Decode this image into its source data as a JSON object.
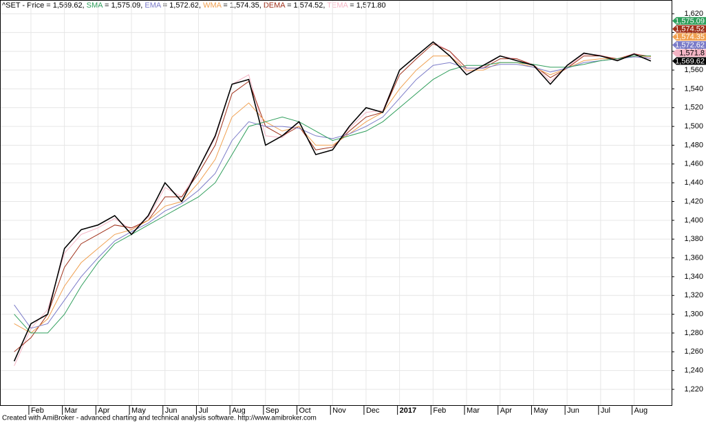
{
  "chart_data": {
    "type": "line",
    "title": "^SET - ",
    "footer": "Created with AmiBroker - advanced charting and technical analysis software. http://www.amibroker.com",
    "categories": [
      null,
      "Feb",
      null,
      "Mar",
      null,
      "Apr",
      null,
      "May",
      null,
      "Jun",
      null,
      "Jul",
      null,
      "Aug",
      null,
      "Sep",
      null,
      "Oct",
      null,
      "Nov",
      null,
      "Dec",
      null,
      "2017",
      null,
      "Feb",
      null,
      "Mar",
      null,
      "Apr",
      null,
      "May",
      null,
      "Jun",
      null,
      "Jul",
      null,
      "Aug",
      null
    ],
    "ylim": [
      1220,
      1620
    ],
    "yticks": [
      {
        "value": 1220,
        "label": "1,220"
      },
      {
        "value": 1240,
        "label": "1,240"
      },
      {
        "value": 1260,
        "label": "1,260"
      },
      {
        "value": 1280,
        "label": "1,280"
      },
      {
        "value": 1300,
        "label": "1,300"
      },
      {
        "value": 1320,
        "label": "1,320"
      },
      {
        "value": 1340,
        "label": "1,340"
      },
      {
        "value": 1360,
        "label": "1,360"
      },
      {
        "value": 1380,
        "label": "1,380"
      },
      {
        "value": 1400,
        "label": "1,400"
      },
      {
        "value": 1420,
        "label": "1,420"
      },
      {
        "value": 1440,
        "label": "1,440"
      },
      {
        "value": 1460,
        "label": "1,460"
      },
      {
        "value": 1480,
        "label": "1,480"
      },
      {
        "value": 1500,
        "label": "1,500"
      },
      {
        "value": 1520,
        "label": "1,520"
      },
      {
        "value": 1540,
        "label": "1,540"
      },
      {
        "value": 1560,
        "label": "1,560"
      },
      {
        "value": 1580,
        "label": "1,580"
      },
      {
        "value": 1600,
        "label": "1,600"
      },
      {
        "value": 1620,
        "label": "1,620"
      }
    ],
    "grid": true,
    "series": [
      {
        "name": "Price",
        "color": "#000000",
        "header_text": " = 1,569.62, ",
        "values": [
          1250,
          1290,
          1300,
          1370,
          1390,
          1395,
          1405,
          1385,
          1405,
          1440,
          1420,
          1455,
          1490,
          1545,
          1550,
          1480,
          1490,
          1505,
          1470,
          1475,
          1500,
          1520,
          1515,
          1560,
          1575,
          1590,
          1575,
          1555,
          1565,
          1575,
          1570,
          1565,
          1545,
          1565,
          1578,
          1575,
          1570,
          1577,
          1569.62
        ],
        "value_labels": [
          null,
          null,
          null,
          null,
          null,
          null,
          null,
          null,
          null,
          null,
          null,
          null,
          null,
          null,
          null,
          null,
          null,
          null,
          null,
          null,
          null,
          null,
          null,
          null,
          null,
          null,
          null,
          null,
          null,
          null,
          null,
          null,
          null,
          null,
          null,
          null,
          null,
          null,
          "1,569.62"
        ]
      },
      {
        "name": "SMA",
        "color": "#2e9e5b",
        "header_text": " = 1,575.09, ",
        "values": [
          1300,
          1280,
          1280,
          1300,
          1330,
          1355,
          1375,
          1385,
          1395,
          1405,
          1415,
          1425,
          1440,
          1470,
          1500,
          1505,
          1510,
          1505,
          1495,
          1485,
          1490,
          1495,
          1505,
          1520,
          1535,
          1550,
          1560,
          1565,
          1565,
          1568,
          1568,
          1566,
          1563,
          1563,
          1566,
          1570,
          1572,
          1575,
          1575.09
        ],
        "value_labels": [
          null,
          null,
          null,
          null,
          null,
          null,
          null,
          null,
          null,
          null,
          null,
          null,
          null,
          null,
          null,
          null,
          null,
          null,
          null,
          null,
          null,
          null,
          null,
          null,
          null,
          null,
          null,
          null,
          null,
          null,
          null,
          null,
          null,
          null,
          null,
          null,
          null,
          null,
          "1,575.09"
        ]
      },
      {
        "name": "EMA",
        "color": "#7b7bc8",
        "header_text": " = 1,572.62, ",
        "values": [
          1310,
          1285,
          1290,
          1315,
          1340,
          1360,
          1378,
          1388,
          1397,
          1410,
          1418,
          1432,
          1450,
          1485,
          1505,
          1500,
          1500,
          1498,
          1490,
          1487,
          1492,
          1500,
          1510,
          1530,
          1550,
          1565,
          1568,
          1562,
          1562,
          1566,
          1566,
          1563,
          1558,
          1562,
          1568,
          1570,
          1572,
          1574,
          1572.62
        ],
        "value_labels": [
          null,
          null,
          null,
          null,
          null,
          null,
          null,
          null,
          null,
          null,
          null,
          null,
          null,
          null,
          null,
          null,
          null,
          null,
          null,
          null,
          null,
          null,
          null,
          null,
          null,
          null,
          null,
          null,
          null,
          null,
          null,
          null,
          null,
          null,
          null,
          null,
          null,
          null,
          "1,572.62"
        ]
      },
      {
        "name": "WMA",
        "color": "#f0a050",
        "header_text": " = 1,574.35, ",
        "values": [
          1290,
          1280,
          1295,
          1330,
          1355,
          1370,
          1385,
          1390,
          1400,
          1415,
          1420,
          1440,
          1465,
          1510,
          1525,
          1505,
          1495,
          1500,
          1480,
          1480,
          1492,
          1505,
          1515,
          1540,
          1560,
          1575,
          1575,
          1560,
          1560,
          1568,
          1568,
          1563,
          1555,
          1562,
          1570,
          1572,
          1572,
          1575,
          1574.35
        ],
        "value_labels": [
          null,
          null,
          null,
          null,
          null,
          null,
          null,
          null,
          null,
          null,
          null,
          null,
          null,
          null,
          null,
          null,
          null,
          null,
          null,
          null,
          null,
          null,
          null,
          null,
          null,
          null,
          null,
          null,
          null,
          null,
          null,
          null,
          null,
          null,
          null,
          null,
          null,
          null,
          "1,574.35"
        ]
      },
      {
        "name": "DEMA",
        "color": "#a0301a",
        "header_text": " = 1,574.52, ",
        "values": [
          1260,
          1275,
          1300,
          1350,
          1375,
          1385,
          1395,
          1392,
          1400,
          1425,
          1425,
          1450,
          1480,
          1535,
          1548,
          1500,
          1490,
          1500,
          1475,
          1478,
          1495,
          1510,
          1515,
          1555,
          1572,
          1588,
          1580,
          1562,
          1562,
          1572,
          1572,
          1565,
          1552,
          1562,
          1575,
          1575,
          1572,
          1577,
          1574.52
        ],
        "value_labels": [
          null,
          null,
          null,
          null,
          null,
          null,
          null,
          null,
          null,
          null,
          null,
          null,
          null,
          null,
          null,
          null,
          null,
          null,
          null,
          null,
          null,
          null,
          null,
          null,
          null,
          null,
          null,
          null,
          null,
          null,
          null,
          null,
          null,
          null,
          null,
          null,
          null,
          null,
          "1,574.52"
        ]
      },
      {
        "name": "TEMA",
        "color": "#f4b4c4",
        "header_text": " = 1,571.80",
        "values": [
          1245,
          1285,
          1305,
          1365,
          1385,
          1392,
          1402,
          1390,
          1403,
          1435,
          1425,
          1455,
          1488,
          1545,
          1555,
          1490,
          1488,
          1505,
          1470,
          1475,
          1498,
          1515,
          1517,
          1560,
          1575,
          1590,
          1580,
          1558,
          1563,
          1575,
          1572,
          1566,
          1548,
          1563,
          1577,
          1576,
          1571,
          1578,
          1571.8
        ],
        "value_labels": [
          null,
          null,
          null,
          null,
          null,
          null,
          null,
          null,
          null,
          null,
          null,
          null,
          null,
          null,
          null,
          null,
          null,
          null,
          null,
          null,
          null,
          null,
          null,
          null,
          null,
          null,
          null,
          null,
          null,
          null,
          null,
          null,
          null,
          null,
          null,
          null,
          null,
          null,
          "1,571.8"
        ]
      }
    ]
  }
}
